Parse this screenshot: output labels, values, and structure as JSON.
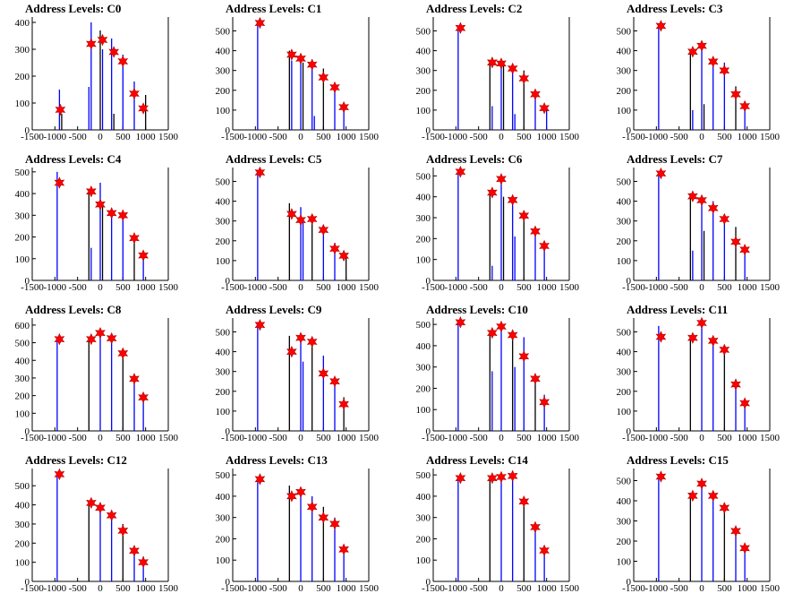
{
  "colors": {
    "bar": "#0000ff",
    "bar_alt": "#000000",
    "marker": "#ff0000",
    "axis": "#000000"
  },
  "chart_data": [
    {
      "type": "bar",
      "title": "Address Levels: C0",
      "xlim": [
        -1500,
        1500
      ],
      "ylim": [
        0,
        420
      ],
      "xticks": [
        -1500,
        -1000,
        -500,
        0,
        500,
        1000,
        1500
      ],
      "yticks": [
        0,
        100,
        200,
        300,
        400
      ],
      "bars": [
        [
          -900,
          150
        ],
        [
          -850,
          60
        ],
        [
          -250,
          160
        ],
        [
          -200,
          400
        ],
        [
          0,
          370
        ],
        [
          50,
          300
        ],
        [
          250,
          340
        ],
        [
          300,
          60
        ],
        [
          500,
          280
        ],
        [
          750,
          180
        ],
        [
          1000,
          130
        ]
      ],
      "peaks": [
        [
          -880,
          75
        ],
        [
          -200,
          320
        ],
        [
          50,
          335
        ],
        [
          300,
          290
        ],
        [
          500,
          255
        ],
        [
          750,
          135
        ],
        [
          950,
          80
        ]
      ]
    },
    {
      "type": "bar",
      "title": "Address Levels: C1",
      "xlim": [
        -1500,
        1500
      ],
      "ylim": [
        0,
        570
      ],
      "xticks": [
        -1500,
        -1000,
        -500,
        0,
        500,
        1000,
        1500
      ],
      "yticks": [
        0,
        100,
        200,
        300,
        400,
        500
      ],
      "bars": [
        [
          -950,
          550
        ],
        [
          -250,
          400
        ],
        [
          -200,
          350
        ],
        [
          0,
          360
        ],
        [
          50,
          340
        ],
        [
          250,
          320
        ],
        [
          300,
          70
        ],
        [
          500,
          310
        ],
        [
          750,
          230
        ],
        [
          950,
          120
        ]
      ],
      "peaks": [
        [
          -900,
          540
        ],
        [
          -200,
          380
        ],
        [
          0,
          360
        ],
        [
          250,
          330
        ],
        [
          500,
          265
        ],
        [
          750,
          215
        ],
        [
          950,
          115
        ]
      ]
    },
    {
      "type": "bar",
      "title": "Address Levels: C2",
      "xlim": [
        -1500,
        1500
      ],
      "ylim": [
        0,
        570
      ],
      "xticks": [
        -1500,
        -1000,
        -500,
        0,
        500,
        1000,
        1500
      ],
      "yticks": [
        0,
        100,
        200,
        300,
        400,
        500
      ],
      "bars": [
        [
          -950,
          520
        ],
        [
          -250,
          350
        ],
        [
          -200,
          120
        ],
        [
          0,
          340
        ],
        [
          50,
          330
        ],
        [
          250,
          310
        ],
        [
          300,
          80
        ],
        [
          500,
          300
        ],
        [
          750,
          190
        ],
        [
          1000,
          120
        ]
      ],
      "peaks": [
        [
          -900,
          515
        ],
        [
          -200,
          340
        ],
        [
          0,
          335
        ],
        [
          250,
          310
        ],
        [
          500,
          260
        ],
        [
          750,
          180
        ],
        [
          950,
          110
        ]
      ]
    },
    {
      "type": "bar",
      "title": "Address Levels: C3",
      "xlim": [
        -1500,
        1500
      ],
      "ylim": [
        0,
        570
      ],
      "xticks": [
        -1500,
        -1000,
        -500,
        0,
        500,
        1000,
        1500
      ],
      "yticks": [
        0,
        100,
        200,
        300,
        400,
        500
      ],
      "bars": [
        [
          -950,
          530
        ],
        [
          -250,
          400
        ],
        [
          -200,
          100
        ],
        [
          0,
          420
        ],
        [
          50,
          130
        ],
        [
          250,
          330
        ],
        [
          500,
          340
        ],
        [
          750,
          220
        ],
        [
          950,
          120
        ]
      ],
      "peaks": [
        [
          -900,
          525
        ],
        [
          -200,
          395
        ],
        [
          0,
          425
        ],
        [
          250,
          345
        ],
        [
          500,
          300
        ],
        [
          750,
          180
        ],
        [
          950,
          120
        ]
      ]
    },
    {
      "type": "bar",
      "title": "Address Levels: C4",
      "xlim": [
        -1500,
        1500
      ],
      "ylim": [
        0,
        520
      ],
      "xticks": [
        -1500,
        -1000,
        -500,
        0,
        500,
        1000,
        1500
      ],
      "yticks": [
        0,
        100,
        200,
        300,
        400,
        500
      ],
      "bars": [
        [
          -950,
          500
        ],
        [
          -250,
          420
        ],
        [
          -200,
          150
        ],
        [
          0,
          450
        ],
        [
          50,
          340
        ],
        [
          250,
          320
        ],
        [
          500,
          310
        ],
        [
          750,
          200
        ],
        [
          950,
          120
        ]
      ],
      "peaks": [
        [
          -900,
          450
        ],
        [
          -200,
          410
        ],
        [
          0,
          350
        ],
        [
          250,
          310
        ],
        [
          500,
          300
        ],
        [
          750,
          195
        ],
        [
          950,
          115
        ]
      ]
    },
    {
      "type": "bar",
      "title": "Address Levels: C5",
      "xlim": [
        -1500,
        1500
      ],
      "ylim": [
        0,
        570
      ],
      "xticks": [
        -1500,
        -1000,
        -500,
        0,
        500,
        1000,
        1500
      ],
      "yticks": [
        0,
        100,
        200,
        300,
        400,
        500
      ],
      "bars": [
        [
          -950,
          550
        ],
        [
          -250,
          390
        ],
        [
          0,
          370
        ],
        [
          50,
          300
        ],
        [
          250,
          320
        ],
        [
          500,
          280
        ],
        [
          750,
          190
        ],
        [
          1000,
          130
        ]
      ],
      "peaks": [
        [
          -900,
          545
        ],
        [
          -200,
          335
        ],
        [
          0,
          305
        ],
        [
          250,
          310
        ],
        [
          500,
          255
        ],
        [
          750,
          160
        ],
        [
          950,
          125
        ]
      ]
    },
    {
      "type": "bar",
      "title": "Address Levels: C6",
      "xlim": [
        -1500,
        1500
      ],
      "ylim": [
        0,
        540
      ],
      "xticks": [
        -1500,
        -1000,
        -500,
        0,
        500,
        1000,
        1500
      ],
      "yticks": [
        0,
        100,
        200,
        300,
        400,
        500
      ],
      "bars": [
        [
          -950,
          520
        ],
        [
          -250,
          420
        ],
        [
          -200,
          70
        ],
        [
          0,
          490
        ],
        [
          50,
          400
        ],
        [
          250,
          400
        ],
        [
          300,
          210
        ],
        [
          500,
          330
        ],
        [
          750,
          240
        ],
        [
          950,
          170
        ]
      ],
      "peaks": [
        [
          -900,
          520
        ],
        [
          -200,
          420
        ],
        [
          0,
          485
        ],
        [
          250,
          385
        ],
        [
          500,
          310
        ],
        [
          750,
          235
        ],
        [
          950,
          165
        ]
      ]
    },
    {
      "type": "bar",
      "title": "Address Levels: C7",
      "xlim": [
        -1500,
        1500
      ],
      "ylim": [
        0,
        570
      ],
      "xticks": [
        -1500,
        -1000,
        -500,
        0,
        500,
        1000,
        1500
      ],
      "yticks": [
        0,
        100,
        200,
        300,
        400,
        500
      ],
      "bars": [
        [
          -950,
          550
        ],
        [
          -250,
          440
        ],
        [
          -200,
          150
        ],
        [
          0,
          420
        ],
        [
          50,
          250
        ],
        [
          250,
          400
        ],
        [
          500,
          320
        ],
        [
          750,
          270
        ],
        [
          950,
          160
        ]
      ],
      "peaks": [
        [
          -900,
          540
        ],
        [
          -200,
          425
        ],
        [
          0,
          405
        ],
        [
          250,
          365
        ],
        [
          500,
          310
        ],
        [
          750,
          195
        ],
        [
          950,
          155
        ]
      ]
    },
    {
      "type": "bar",
      "title": "Address Levels: C8",
      "xlim": [
        -1500,
        1500
      ],
      "ylim": [
        0,
        640
      ],
      "xticks": [
        -1500,
        -1000,
        -500,
        0,
        500,
        1000,
        1500
      ],
      "yticks": [
        0,
        100,
        200,
        300,
        400,
        500,
        600
      ],
      "bars": [
        [
          -950,
          530
        ],
        [
          -250,
          530
        ],
        [
          0,
          580
        ],
        [
          250,
          520
        ],
        [
          500,
          440
        ],
        [
          750,
          290
        ],
        [
          950,
          190
        ]
      ],
      "peaks": [
        [
          -900,
          520
        ],
        [
          -200,
          520
        ],
        [
          0,
          555
        ],
        [
          250,
          525
        ],
        [
          500,
          440
        ],
        [
          750,
          295
        ],
        [
          950,
          190
        ]
      ]
    },
    {
      "type": "bar",
      "title": "Address Levels: C9",
      "xlim": [
        -1500,
        1500
      ],
      "ylim": [
        0,
        570
      ],
      "xticks": [
        -1500,
        -1000,
        -500,
        0,
        500,
        1000,
        1500
      ],
      "yticks": [
        0,
        100,
        200,
        300,
        400,
        500
      ],
      "bars": [
        [
          -950,
          550
        ],
        [
          -250,
          480
        ],
        [
          0,
          470
        ],
        [
          50,
          350
        ],
        [
          250,
          460
        ],
        [
          500,
          380
        ],
        [
          750,
          260
        ],
        [
          950,
          170
        ]
      ],
      "peaks": [
        [
          -900,
          535
        ],
        [
          -200,
          400
        ],
        [
          0,
          470
        ],
        [
          250,
          450
        ],
        [
          500,
          290
        ],
        [
          750,
          250
        ],
        [
          950,
          135
        ]
      ]
    },
    {
      "type": "bar",
      "title": "Address Levels: C10",
      "xlim": [
        -1500,
        1500
      ],
      "ylim": [
        0,
        530
      ],
      "xticks": [
        -1500,
        -1000,
        -500,
        0,
        500,
        1000,
        1500
      ],
      "yticks": [
        0,
        100,
        200,
        300,
        400,
        500
      ],
      "bars": [
        [
          -950,
          520
        ],
        [
          -250,
          460
        ],
        [
          -200,
          280
        ],
        [
          0,
          480
        ],
        [
          250,
          450
        ],
        [
          300,
          300
        ],
        [
          500,
          440
        ],
        [
          750,
          250
        ],
        [
          950,
          170
        ]
      ],
      "peaks": [
        [
          -900,
          510
        ],
        [
          -200,
          460
        ],
        [
          0,
          490
        ],
        [
          250,
          450
        ],
        [
          500,
          350
        ],
        [
          750,
          245
        ],
        [
          950,
          135
        ]
      ]
    },
    {
      "type": "bar",
      "title": "Address Levels: C11",
      "xlim": [
        -1500,
        1500
      ],
      "ylim": [
        0,
        570
      ],
      "xticks": [
        -1500,
        -1000,
        -500,
        0,
        500,
        1000,
        1500
      ],
      "yticks": [
        0,
        100,
        200,
        300,
        400,
        500
      ],
      "bars": [
        [
          -950,
          530
        ],
        [
          -250,
          480
        ],
        [
          0,
          560
        ],
        [
          250,
          460
        ],
        [
          500,
          420
        ],
        [
          750,
          260
        ],
        [
          950,
          150
        ]
      ],
      "peaks": [
        [
          -900,
          475
        ],
        [
          -200,
          470
        ],
        [
          0,
          545
        ],
        [
          250,
          455
        ],
        [
          500,
          410
        ],
        [
          750,
          235
        ],
        [
          950,
          140
        ]
      ]
    },
    {
      "type": "bar",
      "title": "Address Levels: C12",
      "xlim": [
        -1500,
        1500
      ],
      "ylim": [
        0,
        590
      ],
      "xticks": [
        -1500,
        -1000,
        -500,
        0,
        500,
        1000,
        1500
      ],
      "yticks": [
        0,
        100,
        200,
        300,
        400,
        500
      ],
      "bars": [
        [
          -950,
          560
        ],
        [
          -250,
          420
        ],
        [
          0,
          410
        ],
        [
          250,
          350
        ],
        [
          500,
          300
        ],
        [
          750,
          180
        ],
        [
          950,
          130
        ]
      ],
      "peaks": [
        [
          -900,
          560
        ],
        [
          -200,
          410
        ],
        [
          0,
          385
        ],
        [
          250,
          345
        ],
        [
          500,
          265
        ],
        [
          750,
          160
        ],
        [
          950,
          100
        ]
      ]
    },
    {
      "type": "bar",
      "title": "Address Levels: C13",
      "xlim": [
        -1500,
        1500
      ],
      "ylim": [
        0,
        530
      ],
      "xticks": [
        -1500,
        -1000,
        -500,
        0,
        500,
        1000,
        1500
      ],
      "yticks": [
        0,
        100,
        200,
        300,
        400,
        500
      ],
      "bars": [
        [
          -950,
          480
        ],
        [
          -250,
          450
        ],
        [
          0,
          440
        ],
        [
          250,
          400
        ],
        [
          500,
          350
        ],
        [
          750,
          300
        ],
        [
          950,
          170
        ]
      ],
      "peaks": [
        [
          -900,
          480
        ],
        [
          -200,
          400
        ],
        [
          0,
          420
        ],
        [
          250,
          350
        ],
        [
          500,
          300
        ],
        [
          750,
          270
        ],
        [
          950,
          150
        ]
      ]
    },
    {
      "type": "bar",
      "title": "Address Levels: C14",
      "xlim": [
        -1500,
        1500
      ],
      "ylim": [
        0,
        530
      ],
      "xticks": [
        -1500,
        -1000,
        -500,
        0,
        500,
        1000,
        1500
      ],
      "yticks": [
        0,
        100,
        200,
        300,
        400,
        500
      ],
      "bars": [
        [
          -950,
          480
        ],
        [
          -250,
          490
        ],
        [
          0,
          500
        ],
        [
          250,
          490
        ],
        [
          500,
          380
        ],
        [
          750,
          260
        ],
        [
          950,
          150
        ]
      ],
      "peaks": [
        [
          -900,
          485
        ],
        [
          -200,
          485
        ],
        [
          0,
          490
        ],
        [
          250,
          495
        ],
        [
          500,
          375
        ],
        [
          750,
          255
        ],
        [
          950,
          145
        ]
      ]
    },
    {
      "type": "bar",
      "title": "Address Levels: C15",
      "xlim": [
        -1500,
        1500
      ],
      "ylim": [
        0,
        560
      ],
      "xticks": [
        -1500,
        -1000,
        -500,
        0,
        500,
        1000,
        1500
      ],
      "yticks": [
        0,
        100,
        200,
        300,
        400,
        500
      ],
      "bars": [
        [
          -950,
          530
        ],
        [
          -250,
          440
        ],
        [
          0,
          480
        ],
        [
          250,
          420
        ],
        [
          500,
          370
        ],
        [
          750,
          260
        ],
        [
          950,
          170
        ]
      ],
      "peaks": [
        [
          -900,
          520
        ],
        [
          -200,
          425
        ],
        [
          0,
          485
        ],
        [
          250,
          425
        ],
        [
          500,
          365
        ],
        [
          750,
          250
        ],
        [
          950,
          165
        ]
      ]
    }
  ]
}
